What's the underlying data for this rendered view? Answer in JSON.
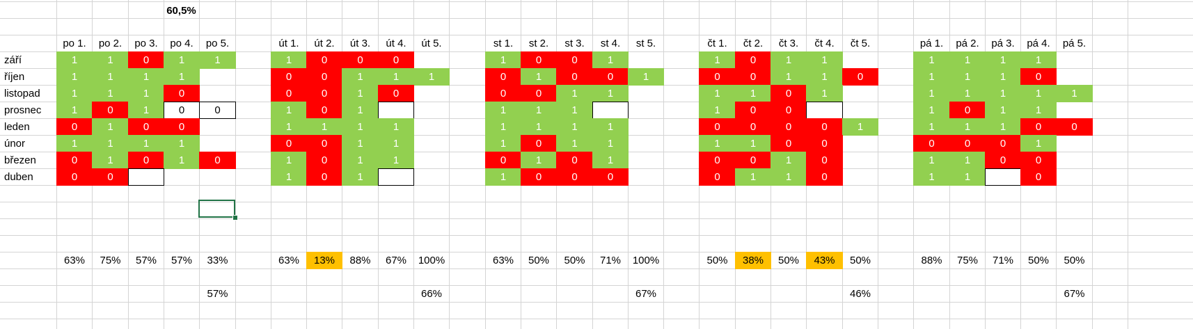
{
  "top_total": "60,5%",
  "months": [
    "září",
    "říjen",
    "listopad",
    "prosnec",
    "leden",
    "únor",
    "březen",
    "duben"
  ],
  "blocks": [
    {
      "headers": [
        "po 1.",
        "po 2.",
        "po 3.",
        "po 4.",
        "po 5."
      ],
      "rows": [
        [
          "1",
          "1",
          "0",
          "1",
          "1"
        ],
        [
          "1",
          "1",
          "1",
          "1",
          ""
        ],
        [
          "1",
          "1",
          "1",
          "0",
          ""
        ],
        [
          "1",
          "0",
          "1",
          "0",
          "0"
        ],
        [
          "0",
          "1",
          "0",
          "0",
          ""
        ],
        [
          "1",
          "1",
          "1",
          "1",
          ""
        ],
        [
          "0",
          "1",
          "0",
          "1",
          "0"
        ],
        [
          "0",
          "0",
          "",
          null,
          null
        ]
      ],
      "boxed": [
        [
          3,
          3
        ],
        [
          3,
          4
        ],
        [
          7,
          2
        ]
      ],
      "percents": [
        "63%",
        "75%",
        "57%",
        "57%",
        "33%"
      ],
      "highlight": [
        false,
        false,
        false,
        false,
        false
      ],
      "total": "57%"
    },
    {
      "headers": [
        "út 1.",
        "út 2.",
        "út 3.",
        "út 4.",
        "út 5."
      ],
      "rows": [
        [
          "1",
          "0",
          "0",
          "0",
          null
        ],
        [
          "0",
          "0",
          "1",
          "1",
          "1"
        ],
        [
          "0",
          "0",
          "1",
          "0",
          null
        ],
        [
          "1",
          "0",
          "1",
          "",
          null
        ],
        [
          "1",
          "1",
          "1",
          "1",
          null
        ],
        [
          "0",
          "0",
          "1",
          "1",
          null
        ],
        [
          "1",
          "0",
          "1",
          "1",
          null
        ],
        [
          "1",
          "0",
          "1",
          "",
          null
        ]
      ],
      "boxed": [
        [
          3,
          3
        ],
        [
          7,
          3
        ]
      ],
      "percents": [
        "63%",
        "13%",
        "88%",
        "67%",
        "100%"
      ],
      "highlight": [
        false,
        true,
        false,
        false,
        false
      ],
      "total": "66%"
    },
    {
      "headers": [
        "st 1.",
        "st 2.",
        "st 3.",
        "st 4.",
        "st 5."
      ],
      "rows": [
        [
          "1",
          "0",
          "0",
          "1",
          null
        ],
        [
          "0",
          "1",
          "0",
          "0",
          "1"
        ],
        [
          "0",
          "0",
          "1",
          "1",
          null
        ],
        [
          "1",
          "1",
          "1",
          "",
          null
        ],
        [
          "1",
          "1",
          "1",
          "1",
          null
        ],
        [
          "1",
          "0",
          "1",
          "1",
          null
        ],
        [
          "0",
          "1",
          "0",
          "1",
          null
        ],
        [
          "1",
          "0",
          "0",
          "0",
          null
        ]
      ],
      "boxed": [
        [
          3,
          3
        ]
      ],
      "percents": [
        "63%",
        "50%",
        "50%",
        "71%",
        "100%"
      ],
      "highlight": [
        false,
        false,
        false,
        false,
        false
      ],
      "total": "67%"
    },
    {
      "headers": [
        "čt 1.",
        "čt 2.",
        "čt 3.",
        "čt 4.",
        "čt 5."
      ],
      "rows": [
        [
          "1",
          "0",
          "1",
          "1",
          null
        ],
        [
          "0",
          "0",
          "1",
          "1",
          "0"
        ],
        [
          "1",
          "1",
          "0",
          "1",
          null
        ],
        [
          "1",
          "0",
          "0",
          "",
          null
        ],
        [
          "0",
          "0",
          "0",
          "0",
          "1"
        ],
        [
          "1",
          "1",
          "0",
          "0",
          null
        ],
        [
          "0",
          "0",
          "1",
          "0",
          null
        ],
        [
          "0",
          "1",
          "1",
          "0",
          null
        ]
      ],
      "boxed": [
        [
          3,
          3
        ]
      ],
      "percents": [
        "50%",
        "38%",
        "50%",
        "43%",
        "50%"
      ],
      "highlight": [
        false,
        true,
        false,
        true,
        false
      ],
      "total": "46%"
    },
    {
      "headers": [
        "pá 1.",
        "pá 2.",
        "pá 3.",
        "pá 4.",
        "pá 5."
      ],
      "rows": [
        [
          "1",
          "1",
          "1",
          "1",
          null
        ],
        [
          "1",
          "1",
          "1",
          "0",
          null
        ],
        [
          "1",
          "1",
          "1",
          "1",
          "1"
        ],
        [
          "1",
          "0",
          "1",
          "1",
          null
        ],
        [
          "1",
          "1",
          "1",
          "0",
          "0"
        ],
        [
          "0",
          "0",
          "0",
          "1",
          null
        ],
        [
          "1",
          "1",
          "0",
          "0",
          null
        ],
        [
          "1",
          "1",
          "",
          "0",
          null
        ]
      ],
      "boxed": [
        [
          7,
          2
        ]
      ],
      "percents": [
        "88%",
        "75%",
        "71%",
        "50%",
        "50%"
      ],
      "highlight": [
        false,
        false,
        false,
        false,
        false
      ],
      "total": "67%"
    }
  ]
}
